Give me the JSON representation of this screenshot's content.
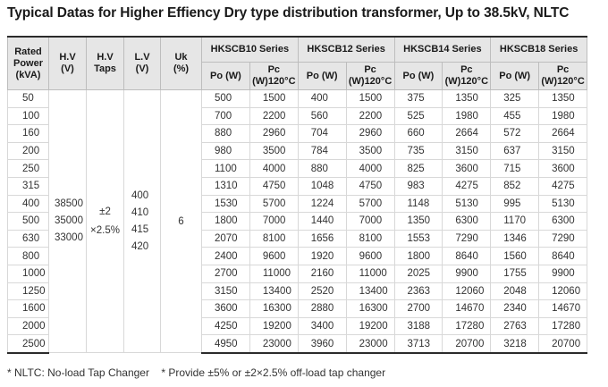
{
  "title": "Typical Datas for Higher Effiency Dry type distribution transformer, Up to 38.5kV, NLTC",
  "headers": {
    "rated_power_l1": "Rated",
    "rated_power_l2": "Power",
    "rated_power_l3": "(kVA)",
    "hv_l1": "H.V",
    "hv_l2": "(V)",
    "taps_l1": "H.V",
    "taps_l2": "Taps",
    "lv_l1": "L.V",
    "lv_l2": "(V)",
    "uk_l1": "Uk",
    "uk_l2": "(%)",
    "series": [
      "HKSCB10 Series",
      "HKSCB12 Series",
      "HKSCB14  Series",
      "HKSCB18  Series"
    ],
    "po": "Po (W)",
    "pc_l1": "Pc",
    "pc_l2": "(W)120°C"
  },
  "merged": {
    "hv": [
      "38500",
      "35000",
      "33000"
    ],
    "taps": [
      "±2",
      "×2.5%"
    ],
    "lv": [
      "400",
      "410",
      "415",
      "420"
    ],
    "uk": "6"
  },
  "rows": [
    {
      "power": "50",
      "vals": [
        "500",
        "1500",
        "400",
        "1500",
        "375",
        "1350",
        "325",
        "1350"
      ]
    },
    {
      "power": "100",
      "vals": [
        "700",
        "2200",
        "560",
        "2200",
        "525",
        "1980",
        "455",
        "1980"
      ]
    },
    {
      "power": "160",
      "vals": [
        "880",
        "2960",
        "704",
        "2960",
        "660",
        "2664",
        "572",
        "2664"
      ]
    },
    {
      "power": "200",
      "vals": [
        "980",
        "3500",
        "784",
        "3500",
        "735",
        "3150",
        "637",
        "3150"
      ]
    },
    {
      "power": "250",
      "vals": [
        "1100",
        "4000",
        "880",
        "4000",
        "825",
        "3600",
        "715",
        "3600"
      ]
    },
    {
      "power": "315",
      "vals": [
        "1310",
        "4750",
        "1048",
        "4750",
        "983",
        "4275",
        "852",
        "4275"
      ]
    },
    {
      "power": "400",
      "vals": [
        "1530",
        "5700",
        "1224",
        "5700",
        "1148",
        "5130",
        "995",
        "5130"
      ]
    },
    {
      "power": "500",
      "vals": [
        "1800",
        "7000",
        "1440",
        "7000",
        "1350",
        "6300",
        "1170",
        "6300"
      ]
    },
    {
      "power": "630",
      "vals": [
        "2070",
        "8100",
        "1656",
        "8100",
        "1553",
        "7290",
        "1346",
        "7290"
      ]
    },
    {
      "power": "800",
      "vals": [
        "2400",
        "9600",
        "1920",
        "9600",
        "1800",
        "8640",
        "1560",
        "8640"
      ]
    },
    {
      "power": "1000",
      "vals": [
        "2700",
        "11000",
        "2160",
        "11000",
        "2025",
        "9900",
        "1755",
        "9900"
      ]
    },
    {
      "power": "1250",
      "vals": [
        "3150",
        "13400",
        "2520",
        "13400",
        "2363",
        "12060",
        "2048",
        "12060"
      ]
    },
    {
      "power": "1600",
      "vals": [
        "3600",
        "16300",
        "2880",
        "16300",
        "2700",
        "14670",
        "2340",
        "14670"
      ]
    },
    {
      "power": "2000",
      "vals": [
        "4250",
        "19200",
        "3400",
        "19200",
        "3188",
        "17280",
        "2763",
        "17280"
      ]
    },
    {
      "power": "2500",
      "vals": [
        "4950",
        "23000",
        "3960",
        "23000",
        "3713",
        "20700",
        "3218",
        "20700"
      ]
    }
  ],
  "footnotes": [
    "* NLTC: No-load Tap Changer",
    "* Provide ±5% or ±2×2.5% off-load tap changer"
  ]
}
